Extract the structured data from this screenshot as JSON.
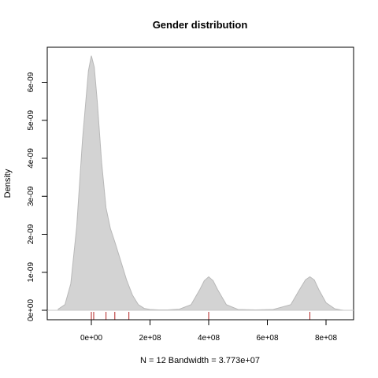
{
  "chart_data": {
    "type": "area",
    "title": "Gender distribution",
    "xlabel": "N = 12   Bandwidth = 3.773e+07",
    "ylabel": "Density",
    "xlim": [
      -100000000,
      890000000
    ],
    "ylim": [
      -3e-10,
      6.9e-09
    ],
    "x_ticks": [
      {
        "value": 0,
        "label": "0e+00"
      },
      {
        "value": 200000000,
        "label": "2e+08"
      },
      {
        "value": 400000000,
        "label": "4e+08"
      },
      {
        "value": 600000000,
        "label": "6e+08"
      },
      {
        "value": 800000000,
        "label": "8e+08"
      }
    ],
    "y_ticks": [
      {
        "value": 0,
        "label": "0e+00"
      },
      {
        "value": 1e-09,
        "label": "1e-09"
      },
      {
        "value": 2e-09,
        "label": "2e-09"
      },
      {
        "value": 3e-09,
        "label": "3e-09"
      },
      {
        "value": 4e-09,
        "label": "4e-09"
      },
      {
        "value": 5e-09,
        "label": "5e-09"
      },
      {
        "value": 6e-09,
        "label": "6e-09"
      }
    ],
    "series": [
      {
        "x": [
          -113000000,
          -90000000,
          -70000000,
          -50000000,
          -30000000,
          -10000000,
          0,
          10000000,
          20000000,
          35000000,
          50000000,
          65000000,
          80000000,
          100000000,
          120000000,
          140000000,
          160000000,
          180000000,
          200000000,
          230000000,
          260000000,
          300000000,
          340000000,
          370000000,
          385000000,
          400000000,
          415000000,
          430000000,
          460000000,
          500000000,
          560000000,
          620000000,
          680000000,
          710000000,
          730000000,
          745000000,
          760000000,
          775000000,
          800000000,
          830000000,
          850000000,
          860000000
        ],
        "y": [
          3e-11,
          1.5e-10,
          7e-10,
          2.2e-09,
          4.5e-09,
          6.3e-09,
          6.7e-09,
          6.4e-09,
          5.5e-09,
          3.9e-09,
          2.7e-09,
          2.15e-09,
          1.8e-09,
          1.3e-09,
          8e-10,
          4e-10,
          1.5e-10,
          5e-11,
          2e-11,
          1e-11,
          1e-11,
          3e-11,
          1.5e-10,
          5.5e-10,
          7.8e-10,
          8.8e-10,
          7.8e-10,
          5.5e-10,
          1.5e-10,
          2e-11,
          1e-11,
          2e-11,
          1.5e-10,
          5.5e-10,
          8e-10,
          8.8e-10,
          8e-10,
          5.5e-10,
          2e-10,
          4e-11,
          1e-11,
          0.0
        ]
      }
    ],
    "rug": [
      0,
      8000000,
      50000000,
      80000000,
      128000000,
      400000000,
      745000000
    ],
    "fill_color": "#d3d3d3",
    "rug_color": "#b22222",
    "grid": false
  }
}
